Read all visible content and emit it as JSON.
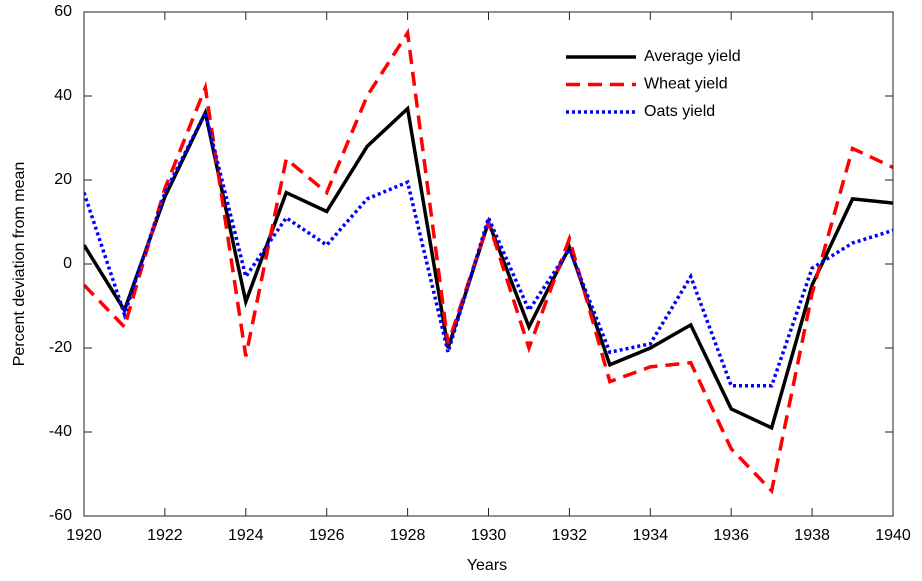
{
  "chart_data": {
    "type": "line",
    "xlabel": "Years",
    "ylabel": "Percent deviation from mean",
    "x": [
      1920,
      1921,
      1922,
      1923,
      1924,
      1925,
      1926,
      1927,
      1928,
      1929,
      1930,
      1931,
      1932,
      1933,
      1934,
      1935,
      1936,
      1937,
      1938,
      1939,
      1940
    ],
    "series": [
      {
        "name": "Average yield",
        "color": "#000000",
        "style": "solid",
        "values": [
          4.5,
          -11,
          16,
          36,
          -9,
          17,
          12.5,
          28,
          37,
          -20,
          10,
          -15,
          4,
          -24,
          -20,
          -14.5,
          -34.5,
          -39,
          -5,
          15.5,
          14.5
        ]
      },
      {
        "name": "Wheat yield",
        "color": "#ff0000",
        "style": "dashed",
        "values": [
          -5,
          -15,
          18,
          42,
          -22,
          25,
          17,
          40,
          55,
          -19,
          10,
          -20,
          6,
          -28,
          -24.5,
          -23.5,
          -44,
          -54,
          -7,
          27.5,
          23
        ]
      },
      {
        "name": "Oats yield",
        "color": "#0000ff",
        "style": "dotted",
        "values": [
          17,
          -12,
          17,
          36,
          -3,
          11,
          4.5,
          15.5,
          19.5,
          -21,
          11,
          -11,
          3.5,
          -21,
          -19,
          -3,
          -29,
          -29,
          -1,
          5,
          8
        ]
      }
    ],
    "xlim": [
      1920,
      1940
    ],
    "xticks": [
      1920,
      1922,
      1924,
      1926,
      1928,
      1930,
      1932,
      1934,
      1936,
      1938,
      1940
    ],
    "ylim": [
      -60,
      60
    ],
    "yticks": [
      -60,
      -40,
      -20,
      0,
      20,
      40,
      60
    ],
    "legend": "upper right",
    "grid": false
  }
}
